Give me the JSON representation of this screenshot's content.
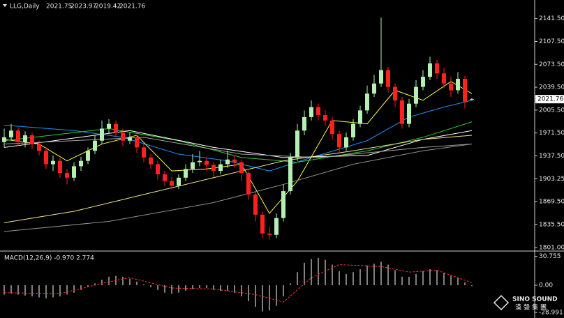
{
  "chart_data": {
    "type": "candlestick",
    "symbol": "LLG,Daily",
    "up_color": "#b4f0b4",
    "down_color": "#ff2020",
    "candles": [
      [
        1958,
        1978,
        1950,
        1965
      ],
      [
        1965,
        1985,
        1960,
        1975
      ],
      [
        1975,
        1980,
        1952,
        1958
      ],
      [
        1958,
        1974,
        1950,
        1968
      ],
      [
        1968,
        1972,
        1948,
        1955
      ],
      [
        1955,
        1960,
        1938,
        1945
      ],
      [
        1945,
        1950,
        1918,
        1925
      ],
      [
        1925,
        1938,
        1915,
        1930
      ],
      [
        1930,
        1934,
        1905,
        1912
      ],
      [
        1912,
        1918,
        1895,
        1905
      ],
      [
        1905,
        1928,
        1900,
        1922
      ],
      [
        1922,
        1936,
        1915,
        1930
      ],
      [
        1930,
        1950,
        1925,
        1945
      ],
      [
        1945,
        1968,
        1940,
        1960
      ],
      [
        1960,
        1990,
        1955,
        1978
      ],
      [
        1978,
        1992,
        1970,
        1985
      ],
      [
        1985,
        1990,
        1965,
        1972
      ],
      [
        1972,
        1978,
        1952,
        1960
      ],
      [
        1960,
        1972,
        1955,
        1965
      ],
      [
        1965,
        1968,
        1942,
        1950
      ],
      [
        1950,
        1955,
        1928,
        1935
      ],
      [
        1935,
        1940,
        1918,
        1925
      ],
      [
        1925,
        1930,
        1902,
        1910
      ],
      [
        1910,
        1915,
        1893,
        1900
      ],
      [
        1900,
        1906,
        1888,
        1893
      ],
      [
        1893,
        1910,
        1888,
        1905
      ],
      [
        1905,
        1925,
        1900,
        1918
      ],
      [
        1918,
        1940,
        1912,
        1928
      ],
      [
        1928,
        1945,
        1922,
        1930
      ],
      [
        1930,
        1935,
        1915,
        1924
      ],
      [
        1924,
        1928,
        1906,
        1915
      ],
      [
        1915,
        1932,
        1910,
        1925
      ],
      [
        1925,
        1945,
        1920,
        1932
      ],
      [
        1932,
        1938,
        1920,
        1928
      ],
      [
        1928,
        1932,
        1900,
        1912
      ],
      [
        1912,
        1915,
        1872,
        1880
      ],
      [
        1880,
        1885,
        1840,
        1850
      ],
      [
        1850,
        1855,
        1815,
        1822
      ],
      [
        1822,
        1832,
        1813,
        1820
      ],
      [
        1820,
        1852,
        1815,
        1845
      ],
      [
        1845,
        1895,
        1840,
        1885
      ],
      [
        1885,
        1942,
        1880,
        1935
      ],
      [
        1935,
        1985,
        1930,
        1975
      ],
      [
        1975,
        2005,
        1968,
        1995
      ],
      [
        1995,
        2020,
        1990,
        2010
      ],
      [
        2010,
        2015,
        1990,
        1998
      ],
      [
        1998,
        2005,
        1982,
        1990
      ],
      [
        1990,
        1995,
        1962,
        1970
      ],
      [
        1970,
        1975,
        1942,
        1950
      ],
      [
        1950,
        1972,
        1945,
        1965
      ],
      [
        1965,
        1992,
        1960,
        1985
      ],
      [
        1985,
        2012,
        1980,
        2005
      ],
      [
        2005,
        2042,
        2000,
        2030
      ],
      [
        2030,
        2058,
        2025,
        2045
      ],
      [
        2045,
        2143,
        2040,
        2065
      ],
      [
        2065,
        2070,
        2032,
        2040
      ],
      [
        2040,
        2045,
        2010,
        2020
      ],
      [
        2020,
        2025,
        1978,
        1985
      ],
      [
        1985,
        2022,
        1980,
        2015
      ],
      [
        2015,
        2050,
        2010,
        2040
      ],
      [
        2040,
        2065,
        2035,
        2055
      ],
      [
        2055,
        2085,
        2050,
        2075
      ],
      [
        2075,
        2080,
        2052,
        2060
      ],
      [
        2060,
        2068,
        2038,
        2045
      ],
      [
        2045,
        2055,
        2025,
        2035
      ],
      [
        2035,
        2062,
        2030,
        2052
      ],
      [
        2052,
        2056,
        2008,
        2018
      ],
      [
        2021.75,
        2023.97,
        2019.42,
        2021.76
      ]
    ],
    "ylim": [
      1798,
      2165
    ],
    "yticks": [
      {
        "value": 2141.5,
        "label": "2141.50"
      },
      {
        "value": 2107.5,
        "label": "2107.50"
      },
      {
        "value": 2073.5,
        "label": "2073.50"
      },
      {
        "value": 2039.5,
        "label": "2039.50"
      },
      {
        "value": 2005.5,
        "label": "2005.50"
      },
      {
        "value": 1971.5,
        "label": "1971.50"
      },
      {
        "value": 1937.5,
        "label": "1937.50"
      },
      {
        "value": 1903.25,
        "label": "1903.25"
      },
      {
        "value": 1869.5,
        "label": "1869.50"
      },
      {
        "value": 1835.5,
        "label": "1835.50"
      },
      {
        "value": 1801,
        "label": "1801.00"
      }
    ],
    "moving_averages": [
      {
        "color": "#1e90ff",
        "x": [
          0,
          10,
          17,
          25,
          32,
          38,
          44,
          52,
          58,
          63,
          67
        ],
        "values": [
          1983,
          1975,
          1965,
          1940,
          1930,
          1915,
          1935,
          1960,
          1995,
          2010,
          2020
        ]
      },
      {
        "color": "#ffff40",
        "x": [
          0,
          5,
          9,
          14,
          19,
          24,
          29,
          34,
          38,
          42,
          47,
          52,
          56,
          60,
          64,
          67
        ],
        "values": [
          1962,
          1955,
          1930,
          1955,
          1968,
          1915,
          1918,
          1925,
          1852,
          1900,
          1990,
          1985,
          2035,
          2020,
          2048,
          2030
        ]
      },
      {
        "color": "#32cd32",
        "x": [
          0,
          15,
          25,
          34,
          42,
          52,
          60,
          67
        ],
        "values": [
          1960,
          1978,
          1960,
          1935,
          1928,
          1945,
          1965,
          1988
        ]
      },
      {
        "color": "#ffffff",
        "x": [
          0,
          18,
          30,
          40,
          52,
          60,
          67
        ],
        "values": [
          1950,
          1975,
          1950,
          1935,
          1938,
          1962,
          1975
        ]
      },
      {
        "color": "#a0a0a0",
        "x": [
          0,
          20,
          34,
          45,
          60,
          67
        ],
        "values": [
          1955,
          1965,
          1940,
          1935,
          1950,
          1955
        ]
      },
      {
        "color": "#f0e68c",
        "x": [
          0,
          10,
          20,
          30,
          40,
          50,
          60,
          67
        ],
        "values": [
          1838,
          1855,
          1880,
          1905,
          1930,
          1945,
          1962,
          1968
        ]
      },
      {
        "color": "#909090",
        "x": [
          0,
          15,
          30,
          40,
          50,
          60,
          67
        ],
        "values": [
          1825,
          1840,
          1868,
          1895,
          1925,
          1945,
          1955
        ]
      }
    ],
    "macd": {
      "label": "MACD(12,26,9) -0.970 2.774",
      "hist_color": "#ffffff",
      "histogram": [
        -10,
        -9,
        -10,
        -11,
        -12,
        -13,
        -14,
        -13,
        -12,
        -10,
        -8,
        -5,
        -2,
        2,
        6,
        9,
        10,
        9,
        7,
        4,
        1,
        -2,
        -5,
        -8,
        -9,
        -8,
        -6,
        -4,
        -3,
        -3,
        -5,
        -6,
        -6,
        -8,
        -12,
        -17,
        -23,
        -28,
        -27,
        -22,
        -12,
        2,
        14,
        24,
        28,
        29,
        27,
        22,
        15,
        12,
        14,
        17,
        21,
        23,
        25,
        22,
        16,
        9,
        9,
        12,
        15,
        17,
        16,
        13,
        10,
        8,
        3,
        -0.97
      ],
      "signal": {
        "color": "#ff3030",
        "x": [
          0,
          8,
          14,
          18,
          24,
          30,
          36,
          40,
          44,
          48,
          54,
          58,
          62,
          67
        ],
        "values": [
          -8,
          -9,
          2,
          8,
          -3,
          -4,
          -10,
          -18,
          8,
          22,
          20,
          14,
          16,
          2.774
        ]
      },
      "ylim": [
        -32,
        35
      ],
      "yticks": [
        30.755,
        {
          "value": 0,
          "label": "0.00"
        },
        -28.991
      ]
    }
  },
  "logo": {
    "name": "SINO SOUND",
    "subtitle": "漢聲集團"
  }
}
